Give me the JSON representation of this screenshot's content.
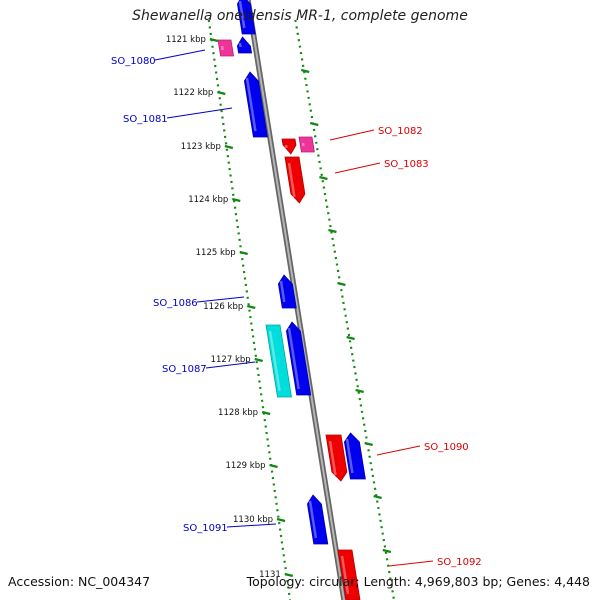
{
  "title": "Shewanella oneidensis MR-1, complete genome",
  "accession_text": "Accession: NC_004347",
  "topology_text": "Topology: circular; Length: 4,969,803 bp; Genes: 4,448",
  "colors": {
    "forward_gene": "#0000ee",
    "reverse_gene": "#ee0000",
    "highlight_forward": "#00dddd",
    "highlight_reverse": "#ee3399",
    "backbone": "#999999",
    "tick": "#118811",
    "forward_label": "#0000cc",
    "reverse_label": "#dd0000"
  },
  "kbp_ticks": [
    "1121 kbp",
    "1122 kbp",
    "1123 kbp",
    "1124 kbp",
    "1125 kbp",
    "1126 kbp",
    "1127 kbp",
    "1128 kbp",
    "1129 kbp",
    "1130 kbp",
    "1131"
  ],
  "gene_labels": {
    "forward": [
      "SO_1080",
      "SO_1081",
      "SO_1086",
      "SO_1087",
      "SO_1091"
    ],
    "reverse": [
      "SO_1082",
      "SO_1083",
      "SO_1090",
      "SO_1092"
    ]
  }
}
